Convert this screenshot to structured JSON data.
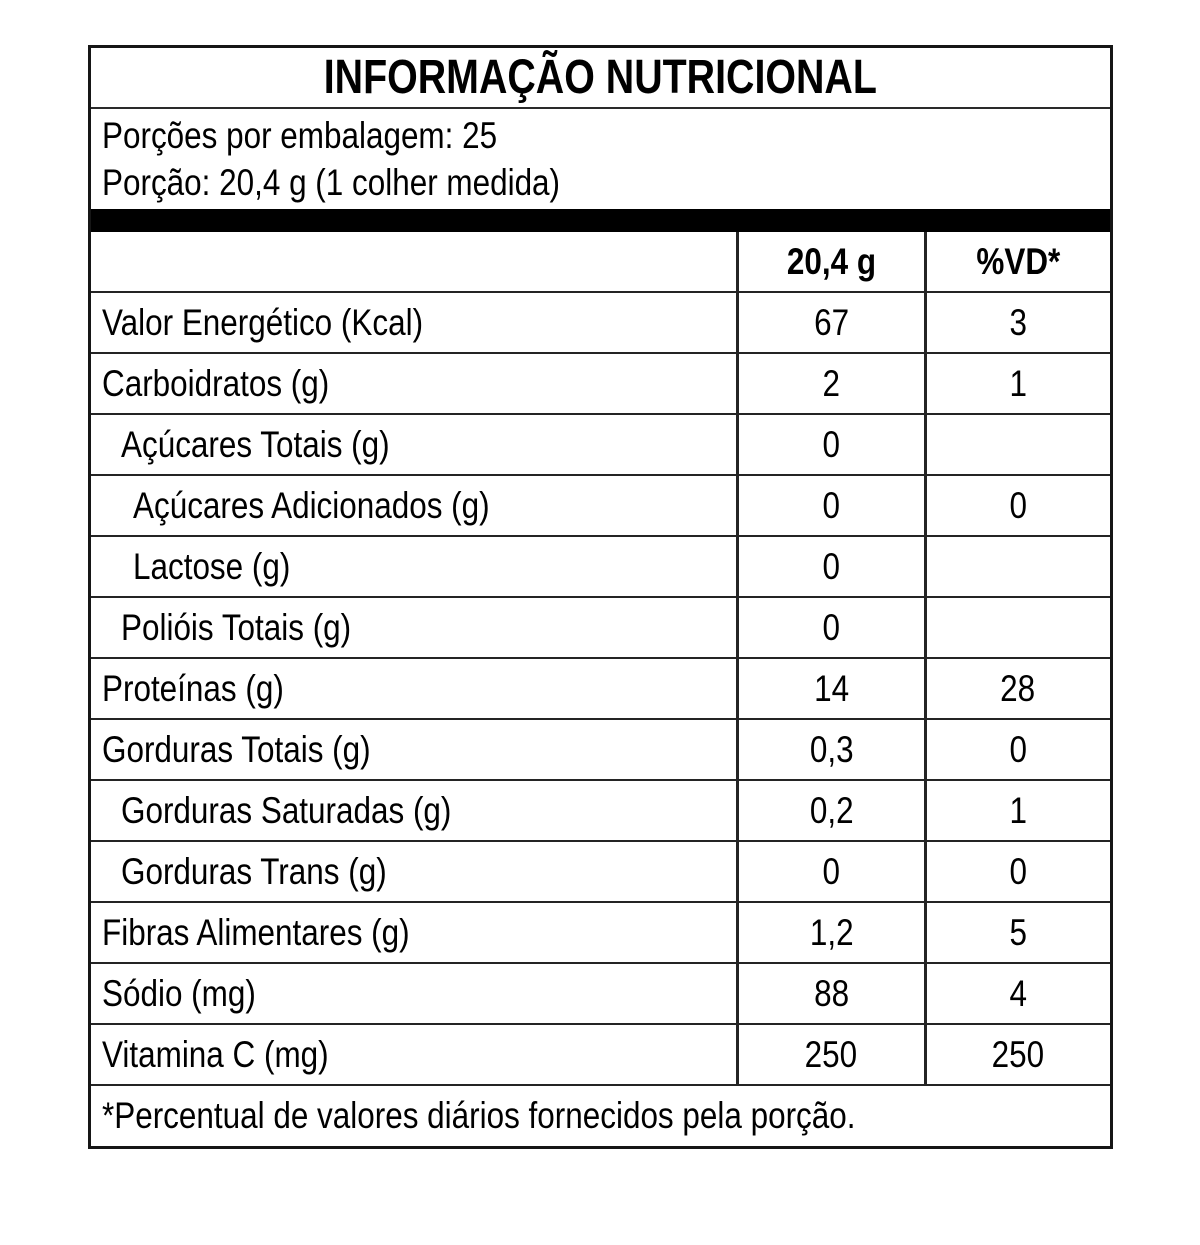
{
  "title": "INFORMAÇÃO NUTRICIONAL",
  "portion": {
    "servings_per_package": "Porções por embalagem: 25",
    "serving_size": "Porção: 20,4 g (1 colher medida)"
  },
  "columns": {
    "amount": "20,4 g",
    "vd": "%VD*"
  },
  "rows": [
    {
      "label": "Valor Energético (Kcal)",
      "amount": "67",
      "vd": "3"
    },
    {
      "label": "Carboidratos (g)",
      "amount": "2",
      "vd": "1"
    },
    {
      "label": "Açúcares Totais (g)",
      "amount": "0",
      "vd": ""
    },
    {
      "label": "Açúcares Adicionados (g)",
      "amount": "0",
      "vd": "0"
    },
    {
      "label": "Lactose (g)",
      "amount": "0",
      "vd": ""
    },
    {
      "label": "Polióis Totais (g)",
      "amount": "0",
      "vd": ""
    },
    {
      "label": "Proteínas (g)",
      "amount": "14",
      "vd": "28"
    },
    {
      "label": "Gorduras Totais (g)",
      "amount": "0,3",
      "vd": "0"
    },
    {
      "label": "Gorduras Saturadas (g)",
      "amount": "0,2",
      "vd": "1"
    },
    {
      "label": "Gorduras Trans (g)",
      "amount": "0",
      "vd": "0"
    },
    {
      "label": "Fibras Alimentares (g)",
      "amount": "1,2",
      "vd": "5"
    },
    {
      "label": "Sódio (mg)",
      "amount": "88",
      "vd": "4"
    },
    {
      "label": "Vitamina C (mg)",
      "amount": "250",
      "vd": "250"
    }
  ],
  "footnote": "*Percentual de valores diários fornecidos pela porção.",
  "colors": {
    "border": "#242424",
    "divider_bar": "#000000",
    "background": "#ffffff",
    "text": "#000000"
  }
}
